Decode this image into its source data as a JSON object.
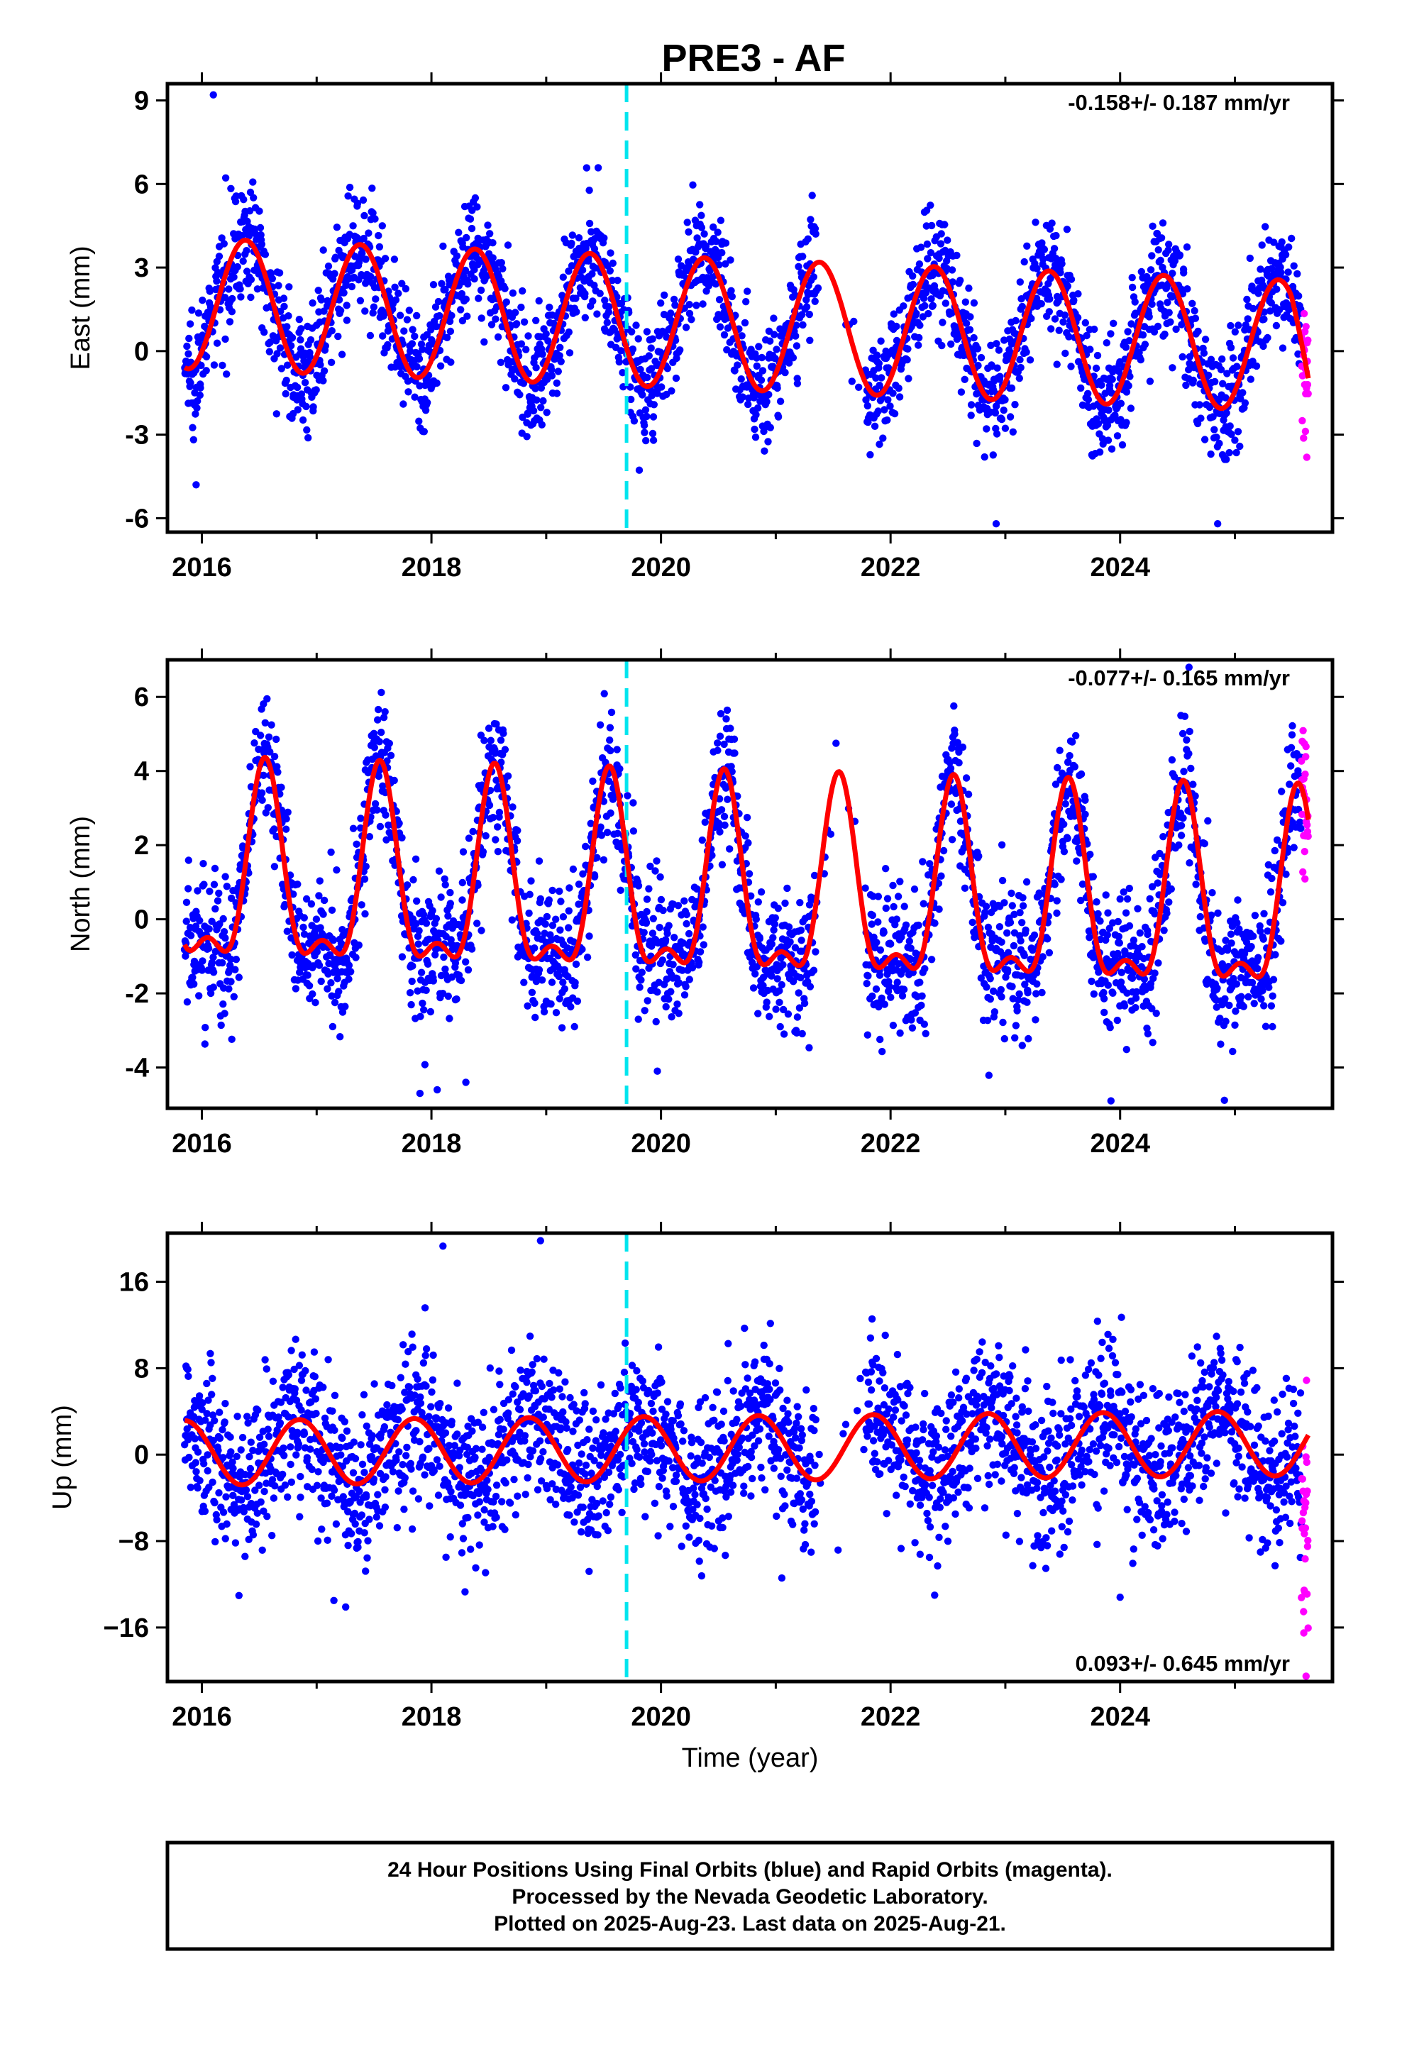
{
  "title": "PRE3 - AF",
  "colors": {
    "final_orbits": "#0000ff",
    "rapid_orbits": "#ff00ff",
    "model_fit": "#ff0000",
    "equipment_change": "#00e5ee"
  },
  "chart_data": [
    {
      "type": "scatter",
      "panel": "east",
      "ylabel": "East (mm)",
      "xlabel": "",
      "rate": "-0.158+/- 0.187 mm/yr",
      "rate_position": "top-right",
      "xlim": [
        2015.7,
        2025.85
      ],
      "ylim": [
        -6.5,
        9.6
      ],
      "x_ticks": [
        2016,
        2018,
        2020,
        2022,
        2024
      ],
      "x_tick_labels": [
        "2016",
        "2018",
        "2020",
        "2022",
        "2024"
      ],
      "y_ticks": [
        -6,
        -3,
        0,
        3,
        6,
        9
      ],
      "y_tick_labels": [
        "-6",
        "-3",
        "0",
        "3",
        "6",
        "9"
      ],
      "equipment_change_x": 2019.7,
      "data_start": 2015.85,
      "rapid_start": 2025.58,
      "data_end": 2025.64,
      "model": {
        "offset": 0.95,
        "annual_amp": 2.35,
        "phase_peak": 0.38,
        "semiannual_amp": 0.0,
        "semi_peak": 0.0,
        "trend": -0.158,
        "ref_epoch": 2020.7,
        "end_drop": -1.0
      },
      "scatter_sd": 1.05,
      "outliers": [
        [
          2016.1,
          9.2
        ],
        [
          2015.95,
          -4.8
        ],
        [
          2022.92,
          -6.2
        ],
        [
          2024.85,
          -6.2
        ]
      ]
    },
    {
      "type": "scatter",
      "panel": "north",
      "ylabel": "North (mm)",
      "xlabel": "",
      "rate": "-0.077+/- 0.165 mm/yr",
      "rate_position": "top-right",
      "xlim": [
        2015.7,
        2025.85
      ],
      "ylim": [
        -5.1,
        7.0
      ],
      "x_ticks": [
        2016,
        2018,
        2020,
        2022,
        2024
      ],
      "x_tick_labels": [
        "2016",
        "2018",
        "2020",
        "2022",
        "2024"
      ],
      "y_ticks": [
        -4,
        -2,
        0,
        2,
        4,
        6
      ],
      "y_tick_labels": [
        "-4",
        "-2",
        "0",
        "2",
        "4",
        "6"
      ],
      "equipment_change_x": 2019.7,
      "data_start": 2015.85,
      "rapid_start": 2025.58,
      "data_end": 2025.64,
      "model": {
        "offset": 0.55,
        "annual_amp": 2.45,
        "phase_peak": 0.55,
        "semiannual_amp": 1.05,
        "semi_peak": 0.55,
        "trend": -0.077,
        "ref_epoch": 2020.7,
        "end_drop": 0.0
      },
      "scatter_sd": 0.95,
      "outliers": [
        [
          2017.9,
          -4.7
        ],
        [
          2018.05,
          -4.6
        ],
        [
          2018.3,
          -4.4
        ],
        [
          2024.6,
          6.8
        ],
        [
          2023.92,
          -4.9
        ]
      ]
    },
    {
      "type": "scatter",
      "panel": "up",
      "ylabel": "Up (mm)",
      "xlabel": "Time (year)",
      "rate": "0.093+/- 0.645 mm/yr",
      "rate_position": "bottom-right",
      "xlim": [
        2015.7,
        2025.85
      ],
      "ylim": [
        -21.0,
        20.5
      ],
      "x_ticks": [
        2016,
        2018,
        2020,
        2022,
        2024
      ],
      "x_tick_labels": [
        "2016",
        "2018",
        "2020",
        "2022",
        "2024"
      ],
      "y_ticks": [
        -16,
        -8,
        0,
        8,
        16
      ],
      "y_tick_labels": [
        "−16",
        "−8",
        "0",
        "8",
        "16"
      ],
      "equipment_change_x": 2019.7,
      "data_start": 2015.85,
      "rapid_start": 2025.58,
      "data_end": 2025.64,
      "model": {
        "offset": 0.6,
        "annual_amp": 3.0,
        "phase_peak": 0.85,
        "semiannual_amp": 0.0,
        "semi_peak": 0.0,
        "trend": 0.093,
        "ref_epoch": 2020.7,
        "end_drop": 0.0
      },
      "scatter_sd": 3.6,
      "outliers": [
        [
          2018.1,
          19.3
        ],
        [
          2018.95,
          19.8
        ],
        [
          2017.15,
          -13.5
        ],
        [
          2024.0,
          -13.2
        ],
        [
          2025.62,
          -20.5
        ],
        [
          2025.6,
          -16.5
        ]
      ]
    }
  ],
  "footer": {
    "line1": "24 Hour Positions Using Final Orbits (blue) and Rapid Orbits (magenta).",
    "line2": "Processed by the Nevada Geodetic Laboratory.",
    "line3": "Plotted on 2025-Aug-23. Last data on 2025-Aug-21."
  }
}
